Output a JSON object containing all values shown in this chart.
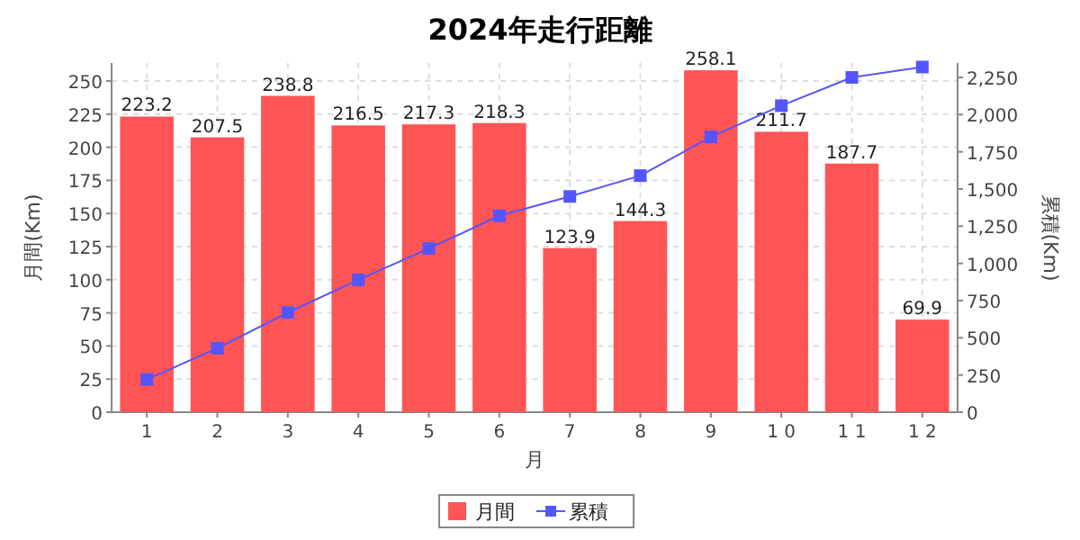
{
  "chart_data": {
    "type": "bar",
    "title": "2024年走行距離",
    "xlabel": "月",
    "ylabel": "月間(Km)",
    "y2label": "累積(Km)",
    "categories": [
      "1",
      "2",
      "3",
      "4",
      "5",
      "6",
      "7",
      "8",
      "9",
      "1 0",
      "1 1",
      "1 2"
    ],
    "series": [
      {
        "name": "月間",
        "color": "#ff5555",
        "values": [
          223.2,
          207.5,
          238.8,
          216.5,
          217.3,
          218.3,
          123.9,
          144.3,
          258.1,
          211.7,
          187.7,
          69.9
        ],
        "value_labels": [
          "223.2",
          "207.5",
          "238.8",
          "216.5",
          "217.3",
          "218.3",
          "123.9",
          "144.3",
          "258.1",
          "211.7",
          "187.7",
          "69.9"
        ]
      },
      {
        "name": "累積",
        "type": "line",
        "axis": "y2",
        "color": "#5555ff",
        "marker": "square",
        "values": [
          220,
          430,
          670,
          890,
          1100,
          1320,
          1450,
          1590,
          1850,
          2060,
          2250,
          2320
        ]
      }
    ],
    "ylim": [
      0,
      263.6
    ],
    "yticks": [
      0,
      25,
      50,
      75,
      100,
      125,
      150,
      175,
      200,
      225,
      250
    ],
    "y2lim": [
      0,
      2347
    ],
    "y2ticks": [
      0,
      250,
      500,
      750,
      {
        "value": 1000,
        "label": "1,000"
      },
      {
        "value": 1250,
        "label": "1,250"
      },
      {
        "value": 1500,
        "label": "1,500"
      },
      {
        "value": 1750,
        "label": "1,750"
      },
      {
        "value": 2000,
        "label": "2,000"
      },
      {
        "value": 2250,
        "label": "2,250"
      }
    ],
    "grid": true,
    "legend": "bottom"
  }
}
